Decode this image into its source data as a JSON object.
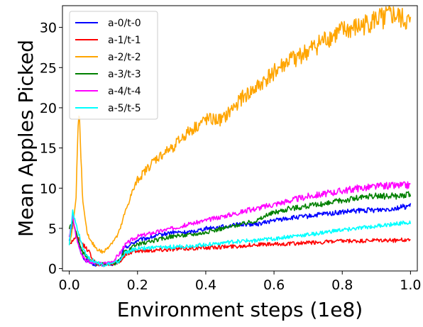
{
  "chart_data": {
    "type": "line",
    "title": "",
    "xlabel": "Environment steps (1e8)",
    "ylabel": "Mean Apples Picked",
    "xlim": [
      -0.02,
      1.02
    ],
    "ylim": [
      -0.3,
      32.7
    ],
    "xticks": [
      0.0,
      0.2,
      0.4,
      0.6,
      0.8,
      1.0
    ],
    "xtick_labels": [
      "0.0",
      "0.2",
      "0.4",
      "0.6",
      "0.8",
      "1.0"
    ],
    "yticks": [
      0,
      5,
      10,
      15,
      20,
      25,
      30
    ],
    "ytick_labels": [
      "0",
      "5",
      "10",
      "15",
      "20",
      "25",
      "30"
    ],
    "grid": false,
    "legend_position": "top-left",
    "series": [
      {
        "name": "a-0/t-0",
        "color": "#0000ff",
        "x": [
          0.0,
          0.01,
          0.02,
          0.03,
          0.04,
          0.05,
          0.06,
          0.07,
          0.08,
          0.09,
          0.1,
          0.11,
          0.12,
          0.13,
          0.14,
          0.15,
          0.16,
          0.18,
          0.2,
          0.25,
          0.3,
          0.35,
          0.4,
          0.45,
          0.5,
          0.55,
          0.6,
          0.65,
          0.7,
          0.75,
          0.8,
          0.85,
          0.9,
          0.95,
          1.0
        ],
        "y": [
          3.5,
          6.0,
          4.5,
          2.5,
          1.5,
          1.0,
          0.8,
          0.6,
          0.5,
          0.5,
          0.5,
          0.6,
          0.5,
          0.6,
          0.8,
          1.2,
          2.5,
          3.0,
          3.5,
          4.0,
          4.5,
          4.5,
          5.0,
          5.2,
          5.5,
          5.5,
          6.0,
          6.3,
          6.5,
          6.8,
          7.0,
          7.2,
          7.3,
          7.5,
          7.8
        ]
      },
      {
        "name": "a-1/t-1",
        "color": "#ff0000",
        "x": [
          0.0,
          0.01,
          0.02,
          0.03,
          0.04,
          0.05,
          0.06,
          0.07,
          0.08,
          0.09,
          0.1,
          0.11,
          0.12,
          0.13,
          0.14,
          0.15,
          0.16,
          0.18,
          0.2,
          0.25,
          0.3,
          0.35,
          0.4,
          0.45,
          0.5,
          0.55,
          0.6,
          0.65,
          0.7,
          0.75,
          0.8,
          0.85,
          0.9,
          0.95,
          1.0
        ],
        "y": [
          3.0,
          3.5,
          4.0,
          3.5,
          3.0,
          2.5,
          2.0,
          1.0,
          0.6,
          0.5,
          0.5,
          0.5,
          0.6,
          0.6,
          0.8,
          1.0,
          1.5,
          2.0,
          2.2,
          2.3,
          2.4,
          2.5,
          2.6,
          2.7,
          2.8,
          3.0,
          3.0,
          3.1,
          3.2,
          3.3,
          3.4,
          3.4,
          3.5,
          3.5,
          3.6
        ]
      },
      {
        "name": "a-2/t-2",
        "color": "#ffa500",
        "x": [
          0.0,
          0.01,
          0.02,
          0.025,
          0.03,
          0.035,
          0.04,
          0.05,
          0.06,
          0.07,
          0.08,
          0.09,
          0.1,
          0.11,
          0.12,
          0.13,
          0.14,
          0.15,
          0.16,
          0.18,
          0.2,
          0.25,
          0.3,
          0.35,
          0.4,
          0.45,
          0.5,
          0.55,
          0.6,
          0.65,
          0.7,
          0.75,
          0.8,
          0.85,
          0.9,
          0.95,
          1.0
        ],
        "y": [
          3.0,
          5.0,
          9.0,
          17.0,
          19.5,
          13.0,
          8.0,
          5.0,
          3.5,
          3.0,
          2.5,
          2.2,
          2.0,
          2.5,
          3.0,
          3.5,
          4.0,
          5.0,
          6.5,
          9.0,
          11.0,
          13.5,
          15.0,
          17.0,
          18.5,
          18.5,
          21.0,
          22.5,
          24.5,
          26.0,
          27.0,
          28.5,
          29.5,
          30.0,
          31.0,
          31.5,
          30.5
        ]
      },
      {
        "name": "a-3/t-3",
        "color": "#008000",
        "x": [
          0.0,
          0.01,
          0.02,
          0.03,
          0.04,
          0.05,
          0.06,
          0.07,
          0.08,
          0.09,
          0.1,
          0.11,
          0.12,
          0.13,
          0.14,
          0.15,
          0.16,
          0.18,
          0.2,
          0.25,
          0.3,
          0.35,
          0.4,
          0.45,
          0.5,
          0.55,
          0.6,
          0.65,
          0.7,
          0.75,
          0.8,
          0.85,
          0.9,
          0.95,
          1.0
        ],
        "y": [
          5.0,
          6.0,
          4.5,
          3.0,
          2.0,
          1.5,
          1.0,
          0.8,
          0.6,
          0.5,
          0.5,
          0.5,
          0.6,
          0.6,
          0.8,
          1.0,
          2.0,
          2.5,
          3.0,
          3.5,
          4.0,
          4.2,
          4.5,
          5.0,
          5.5,
          6.0,
          7.0,
          7.5,
          7.8,
          8.0,
          8.5,
          8.8,
          9.0,
          9.0,
          9.2
        ]
      },
      {
        "name": "a-4/t-4",
        "color": "#ff00ff",
        "x": [
          0.0,
          0.01,
          0.02,
          0.03,
          0.04,
          0.05,
          0.06,
          0.07,
          0.08,
          0.09,
          0.1,
          0.11,
          0.12,
          0.13,
          0.14,
          0.15,
          0.16,
          0.18,
          0.2,
          0.25,
          0.3,
          0.35,
          0.4,
          0.45,
          0.5,
          0.55,
          0.6,
          0.65,
          0.7,
          0.75,
          0.8,
          0.85,
          0.9,
          0.95,
          1.0
        ],
        "y": [
          4.0,
          6.5,
          4.0,
          2.5,
          1.5,
          1.0,
          0.8,
          0.7,
          0.6,
          0.6,
          0.6,
          0.7,
          0.8,
          1.0,
          1.5,
          2.0,
          2.8,
          3.5,
          4.0,
          4.5,
          5.0,
          5.5,
          6.0,
          6.5,
          7.0,
          7.5,
          8.0,
          8.5,
          9.0,
          9.3,
          9.7,
          10.0,
          10.2,
          10.3,
          10.4
        ]
      },
      {
        "name": "a-5/t-5",
        "color": "#00ffff",
        "x": [
          0.0,
          0.01,
          0.02,
          0.03,
          0.04,
          0.05,
          0.06,
          0.07,
          0.08,
          0.09,
          0.1,
          0.11,
          0.12,
          0.13,
          0.14,
          0.15,
          0.16,
          0.18,
          0.2,
          0.25,
          0.3,
          0.35,
          0.4,
          0.45,
          0.5,
          0.55,
          0.6,
          0.65,
          0.7,
          0.75,
          0.8,
          0.85,
          0.9,
          0.95,
          1.0
        ],
        "y": [
          3.0,
          7.0,
          5.5,
          4.0,
          2.5,
          1.8,
          1.2,
          1.0,
          0.8,
          0.6,
          0.5,
          0.5,
          0.6,
          0.6,
          0.8,
          1.0,
          1.8,
          2.2,
          2.5,
          2.6,
          2.7,
          2.8,
          3.0,
          3.2,
          3.4,
          3.5,
          3.7,
          4.0,
          4.2,
          4.5,
          4.8,
          5.0,
          5.3,
          5.5,
          5.8
        ]
      }
    ]
  }
}
